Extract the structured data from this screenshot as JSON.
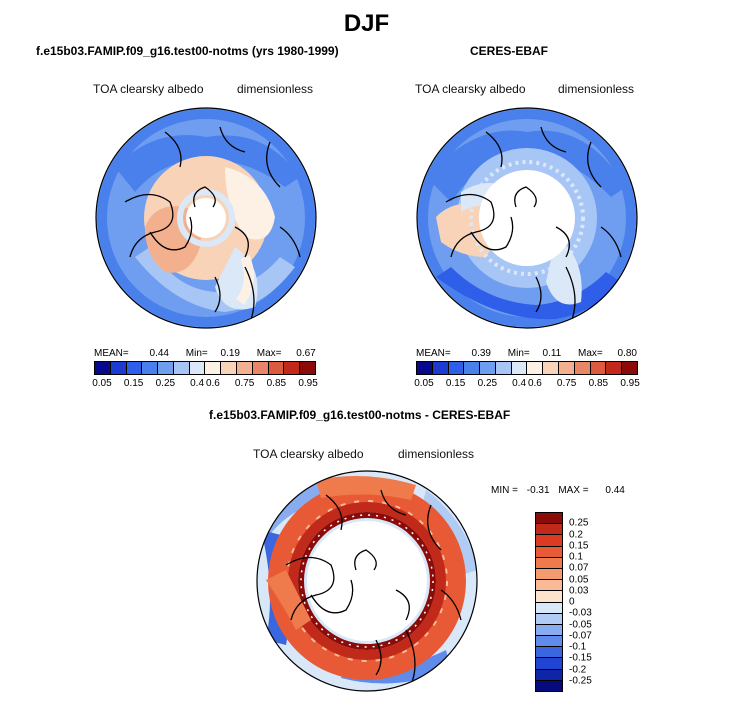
{
  "main_title": "DJF",
  "panels": [
    {
      "title": "f.e15b03.FAMIP.f09_g16.test00-notms (yrs 1980-1999)",
      "variable": "TOA clearsky albedo",
      "units": "dimensionless",
      "stats": {
        "mean_label": "MEAN=",
        "mean": "0.44",
        "min_label": "Min=",
        "min": "0.19",
        "max_label": "Max=",
        "max": "0.67"
      }
    },
    {
      "title": "CERES-EBAF",
      "variable": "TOA clearsky albedo",
      "units": "dimensionless",
      "stats": {
        "mean_label": "MEAN=",
        "mean": "0.39",
        "min_label": "Min=",
        "min": "0.11",
        "max_label": "Max=",
        "max": "0.80"
      }
    },
    {
      "title": "f.e15b03.FAMIP.f09_g16.test00-notms - CERES-EBAF",
      "variable": "TOA clearsky albedo",
      "units": "dimensionless",
      "stats": {
        "min_label": "MIN =",
        "min": "-0.31",
        "max_label": "MAX =",
        "max": "0.44"
      }
    }
  ],
  "abs_colorbar": {
    "colors": [
      "#08088a",
      "#1c3bd0",
      "#2f5fe8",
      "#4a80ec",
      "#6f9ef0",
      "#a8c6f5",
      "#dbe8f8",
      "#fdf0e4",
      "#f9d3b8",
      "#f3b08f",
      "#ea8566",
      "#dc5a3e",
      "#c1291a",
      "#8a0b08"
    ],
    "ticks": [
      "0.05",
      "0.15",
      "0.25",
      "0.4",
      "0.6",
      "0.75",
      "0.85",
      "0.95"
    ]
  },
  "diff_colorbar": {
    "colors": [
      "#8a0b08",
      "#c1291a",
      "#dc3a22",
      "#e85a35",
      "#ef7a4c",
      "#f49a6e",
      "#f8bb96",
      "#fde3cc",
      "#d8e8f8",
      "#b0ccf4",
      "#88acef",
      "#5f8bea",
      "#3a66e0",
      "#1f45d2",
      "#0f25a8",
      "#070a7c"
    ],
    "ticks": [
      "0.25",
      "0.2",
      "0.15",
      "0.1",
      "0.07",
      "0.05",
      "0.03",
      "0",
      "-0.03",
      "-0.05",
      "-0.07",
      "-0.1",
      "-0.15",
      "-0.2",
      "-0.25"
    ]
  }
}
